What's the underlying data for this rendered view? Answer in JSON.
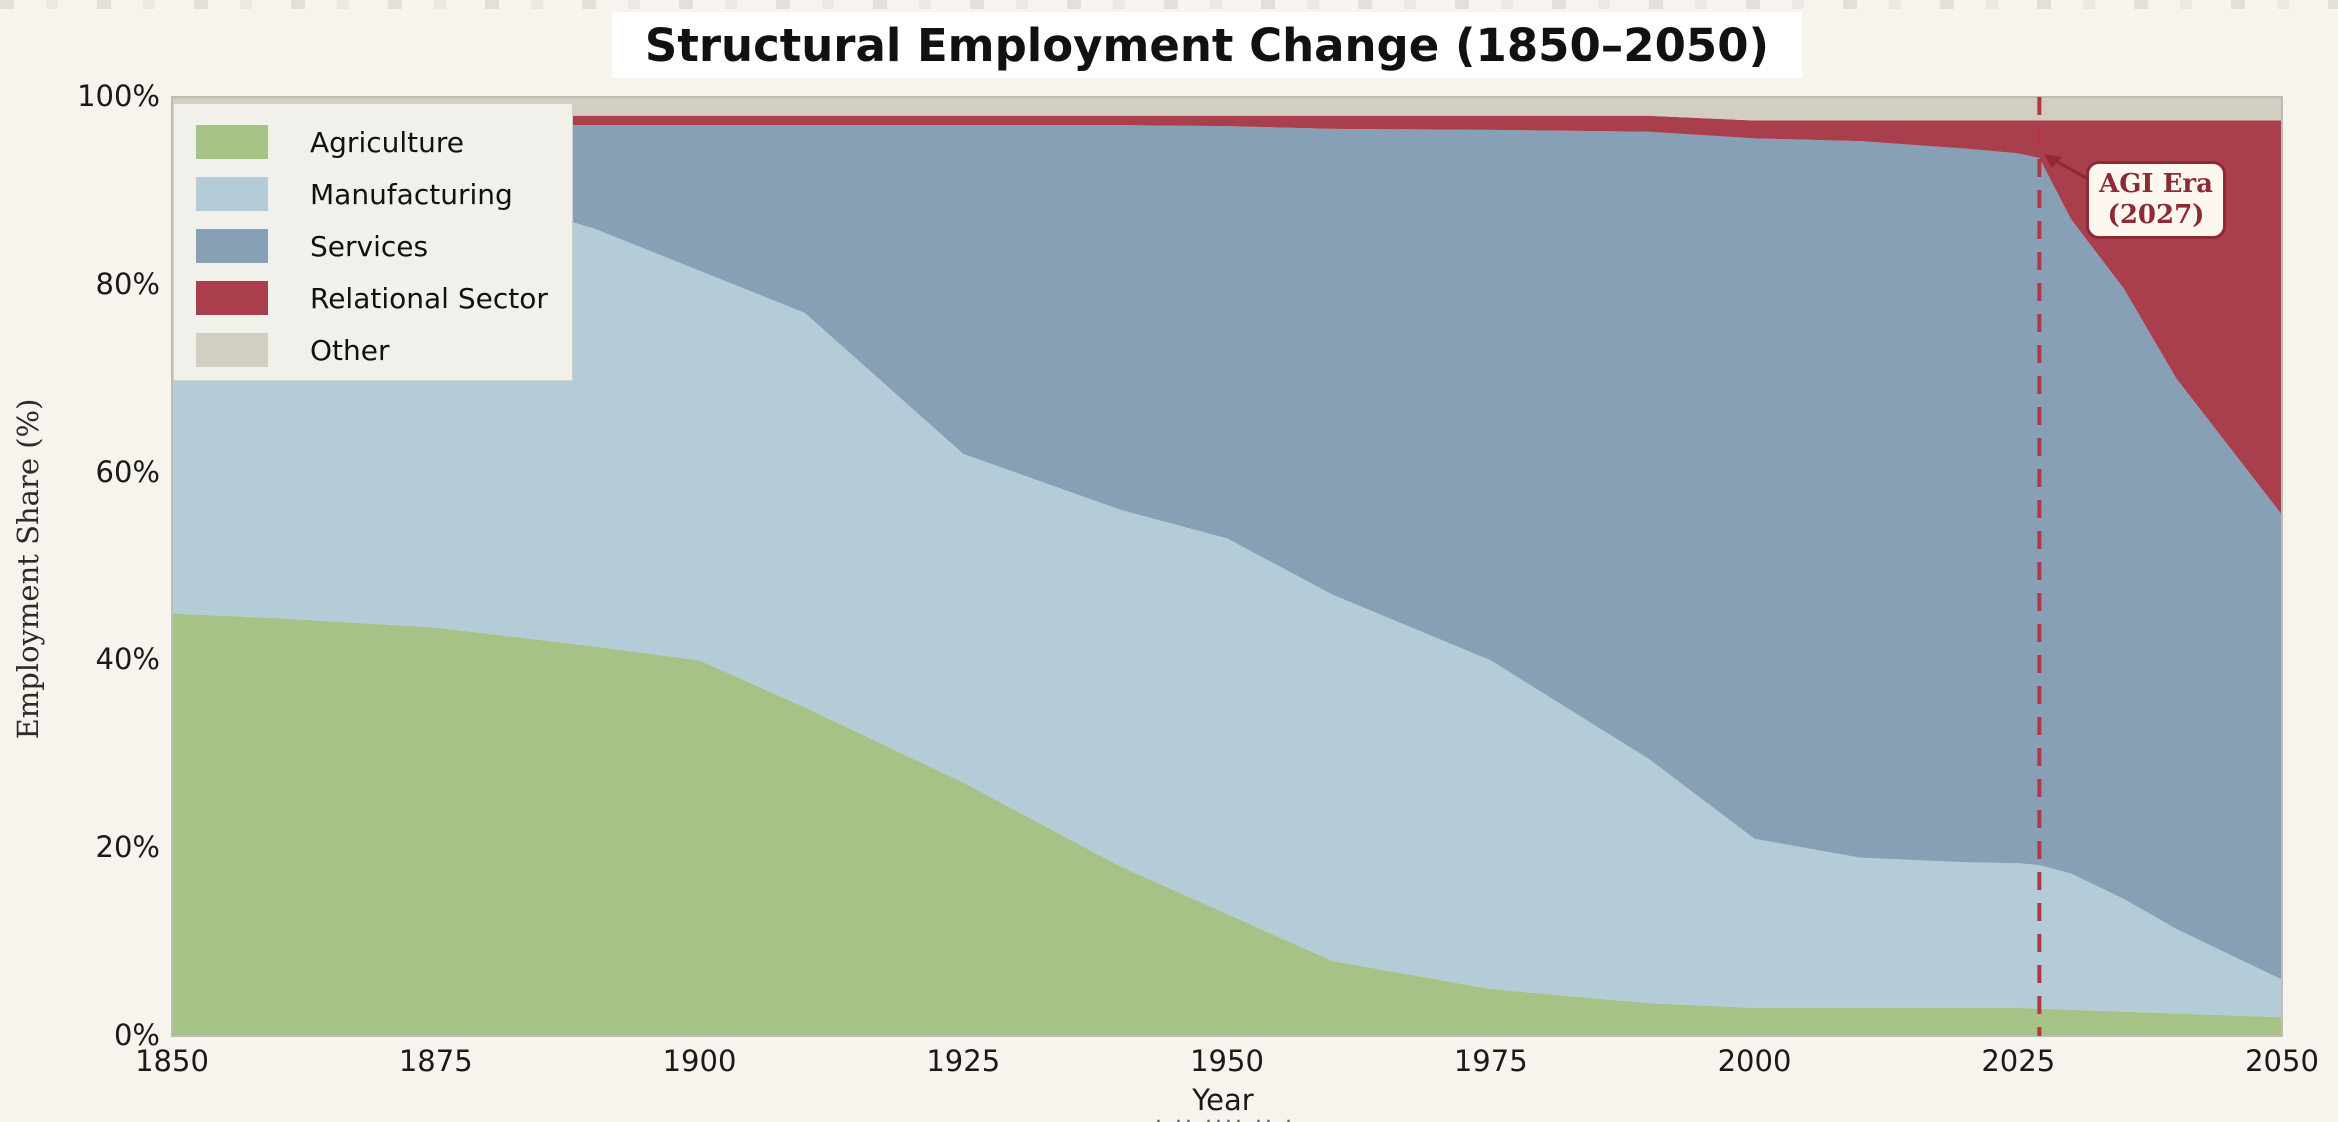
{
  "title": "Structural Employment Change (1850–2050)",
  "colors": {
    "background": "#f7f4ee",
    "plot_border": "#bfbcb3",
    "legend_bg": "#f2f0ea",
    "dashed_line": "#b23745",
    "annotation_red": "#8d2a36",
    "tick_text": "#1a1a1a"
  },
  "chart_data": {
    "type": "area",
    "stacked": true,
    "title": "Structural Employment Change (1850–2050)",
    "xlabel": "Year",
    "ylabel": "Employment Share (%)",
    "x_range": [
      1850,
      2050
    ],
    "y_range_percent": [
      0,
      100
    ],
    "x_ticks": [
      1850,
      1875,
      1900,
      1925,
      1950,
      1975,
      2000,
      2025,
      2050
    ],
    "y_ticks": [
      {
        "value": 0,
        "label": "0%"
      },
      {
        "value": 20,
        "label": "20%"
      },
      {
        "value": 40,
        "label": "40%"
      },
      {
        "value": 60,
        "label": "60%"
      },
      {
        "value": 80,
        "label": "80%"
      },
      {
        "value": 100,
        "label": "100%"
      }
    ],
    "grid": false,
    "legend_position": "upper left",
    "years": [
      1850,
      1860,
      1875,
      1890,
      1900,
      1910,
      1925,
      1940,
      1950,
      1960,
      1975,
      1990,
      2000,
      2010,
      2020,
      2025,
      2027,
      2030,
      2035,
      2040,
      2050
    ],
    "series": [
      {
        "name": "Agriculture",
        "color": "#a7c287",
        "values": [
          45,
          44.5,
          43.5,
          41.5,
          40,
          35,
          27,
          18,
          13,
          8,
          5,
          3.5,
          3,
          3,
          3,
          3,
          2.9,
          2.8,
          2.6,
          2.4,
          2
        ]
      },
      {
        "name": "Manufacturing",
        "color": "#b3ccd8",
        "values": [
          51,
          50,
          47.5,
          44.5,
          41.5,
          42,
          35,
          38,
          40,
          39,
          35,
          26,
          18,
          16,
          15.5,
          15.4,
          15.3,
          14.5,
          12,
          9,
          4
        ]
      },
      {
        "name": "Services",
        "color": "#87a0b5",
        "values": [
          1,
          2.5,
          6,
          11,
          15.5,
          20,
          35,
          41,
          43.9,
          49.6,
          56.5,
          66.8,
          74.6,
          76.3,
          76,
          75.6,
          75.3,
          69.7,
          65,
          58.6,
          49.5
        ]
      },
      {
        "name": "Relational Sector",
        "color": "#a93f4d",
        "values": [
          1,
          1,
          1,
          1,
          1,
          1,
          1,
          1,
          1.1,
          1.4,
          1.5,
          1.7,
          1.9,
          2.2,
          3,
          3.5,
          4,
          10.5,
          17.9,
          27.5,
          42
        ]
      },
      {
        "name": "Other",
        "color": "#d2cec1",
        "values": [
          2,
          2,
          2,
          2,
          2,
          2,
          2,
          2,
          2,
          2,
          2,
          2,
          2.5,
          2.5,
          2.5,
          2.5,
          2.5,
          2.5,
          2.5,
          2.5,
          2.5
        ]
      }
    ],
    "annotation": {
      "label_line1": "AGI Era",
      "label_line2": "(2027)",
      "x_year": 2027,
      "line_style": "dashed"
    }
  },
  "footer_clipped_marks": "· ·· ···· ·· ·"
}
